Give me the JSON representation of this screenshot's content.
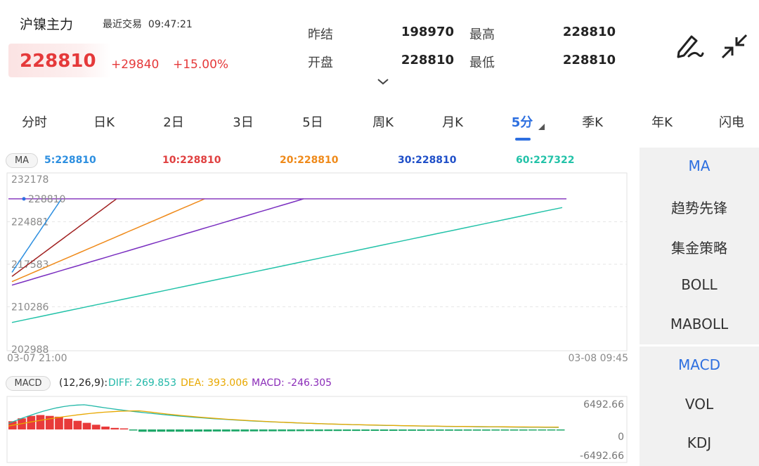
{
  "header": {
    "symbol": "沪镍主力",
    "last_trade_label": "最近交易",
    "last_trade_time": "09:47:21",
    "price": "228810",
    "change": "+29840",
    "change_pct": "+15.00%",
    "quote": [
      {
        "label": "昨结",
        "value": "198970"
      },
      {
        "label": "最高",
        "value": "228810"
      },
      {
        "label": "开盘",
        "value": "228810"
      },
      {
        "label": "最低",
        "value": "228810"
      }
    ],
    "price_color": "#e5393a"
  },
  "tabs": [
    {
      "label": "分时"
    },
    {
      "label": "日K"
    },
    {
      "label": "2日"
    },
    {
      "label": "3日"
    },
    {
      "label": "5日"
    },
    {
      "label": "周K"
    },
    {
      "label": "月K"
    },
    {
      "label": "5分",
      "active": true
    },
    {
      "label": "季K"
    },
    {
      "label": "年K"
    },
    {
      "label": "闪电"
    }
  ],
  "ma_header": {
    "badge": "MA",
    "values": [
      {
        "text": "5:228810",
        "color": "#2d8fe0"
      },
      {
        "text": "10:228810",
        "color": "#e04040"
      },
      {
        "text": "20:228810",
        "color": "#ef8a1a"
      },
      {
        "text": "30:228810",
        "color": "#1f4fc8"
      },
      {
        "text": "60:227322",
        "color": "#22c2a8"
      }
    ]
  },
  "macd_header": {
    "badge": "MACD",
    "params": "(12,26,9):",
    "diff": "DIFF: 269.853",
    "dea": "DEA: 393.006",
    "macd": "MACD: -246.305",
    "colors": {
      "diff": "#22b8a8",
      "dea": "#e8a800",
      "macd": "#8a2bb8"
    }
  },
  "side_menu": {
    "main": [
      {
        "label": "MA",
        "active": true
      },
      {
        "label": "趋势先锋"
      },
      {
        "label": "集金策略"
      },
      {
        "label": "BOLL"
      },
      {
        "label": "MABOLL"
      }
    ],
    "sub": [
      {
        "label": "MACD",
        "active": true
      },
      {
        "label": "VOL"
      },
      {
        "label": "KDJ"
      }
    ]
  },
  "chart_data": [
    {
      "type": "line",
      "yticks": [
        "232178",
        "224881",
        "217583",
        "210286",
        "202988"
      ],
      "ylim": [
        202988,
        232178
      ],
      "x_start_label": "03-07 21:00",
      "x_end_label": "03-08 09:45",
      "current_price_label": "228810",
      "series": [
        {
          "name": "5",
          "color": "#2d8fe0",
          "start": 216200,
          "cap": 228810,
          "rise_end": 0.09
        },
        {
          "name": "10",
          "color": "#a02020",
          "start": 215500,
          "cap": 228810,
          "rise_end": 0.19
        },
        {
          "name": "20",
          "color": "#ef8a1a",
          "start": 214600,
          "cap": 228810,
          "rise_end": 0.35
        },
        {
          "name": "30",
          "color": "#7a2fc0",
          "start": 214000,
          "cap": 228810,
          "rise_end": 0.53
        },
        {
          "name": "60",
          "color": "#22c2a8",
          "start": 207600,
          "cap": 227322,
          "rise_end": 1.0
        }
      ],
      "cap_line_color": "#8a3fc0"
    },
    {
      "type": "bar",
      "yticks": [
        "6492.66",
        "0",
        "-6492.66"
      ],
      "ylim": [
        -6492.66,
        6492.66
      ],
      "bars": [
        2000,
        2700,
        3300,
        3500,
        3300,
        3100,
        2600,
        2100,
        1600,
        1150,
        700,
        380,
        120,
        -250,
        -570,
        -560,
        -555,
        -550,
        -540,
        -530,
        -520,
        -510,
        -500,
        -490,
        -480,
        -470,
        -460,
        -450,
        -440,
        -430,
        -420,
        -410,
        -400,
        -390,
        -380,
        -370,
        -360,
        -355,
        -350,
        -345,
        -340,
        -335,
        -330,
        -325,
        -320,
        -315,
        -310,
        -305,
        -300,
        -295,
        -290,
        -285,
        -280,
        -275,
        -270,
        -265,
        -260,
        -255,
        -250,
        -246
      ],
      "diff_start": 1400,
      "diff_peak": 5700,
      "diff_end": 270,
      "dea_start": 800,
      "dea_peak": 4300,
      "dea_end": 393
    }
  ]
}
